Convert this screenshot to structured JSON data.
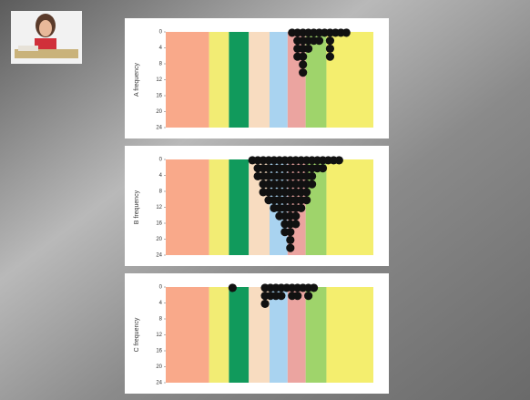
{
  "chart_data": [
    {
      "type": "dotplot",
      "y_label": "A frequency",
      "xlim": [
        0,
        23
      ],
      "ylim": [
        0,
        24
      ],
      "yticks": [
        0,
        4,
        8,
        12,
        16,
        20,
        24
      ],
      "y_inverted": true,
      "dot_color": "#111111",
      "bands": [
        {
          "x": [
            0,
            4.8
          ],
          "color": "#f9a98a"
        },
        {
          "x": [
            4.8,
            7
          ],
          "color": "#f2ec74"
        },
        {
          "x": [
            7,
            9.2
          ],
          "color": "#119a5c"
        },
        {
          "x": [
            9.2,
            11.5
          ],
          "color": "#f8dcc0"
        },
        {
          "x": [
            11.5,
            13.5
          ],
          "color": "#a9d3f0"
        },
        {
          "x": [
            13.5,
            15.5
          ],
          "color": "#eba4a0"
        },
        {
          "x": [
            15.5,
            17.8
          ],
          "color": "#9fd46b"
        },
        {
          "x": [
            17.8,
            23
          ],
          "color": "#f4ee6e"
        }
      ],
      "x": [
        14.0,
        14.6,
        15.2,
        15.8,
        16.4,
        17.0,
        17.6,
        18.2,
        18.8,
        19.4,
        20.0
      ],
      "values": [
        1,
        4,
        6,
        3,
        2,
        2,
        1,
        4,
        1,
        1,
        1
      ]
    },
    {
      "type": "dotplot",
      "y_label": "B frequency",
      "xlim": [
        0,
        23
      ],
      "ylim": [
        0,
        24
      ],
      "yticks": [
        0,
        4,
        8,
        12,
        16,
        20,
        24
      ],
      "y_inverted": true,
      "dot_color": "#111111",
      "bands": [
        {
          "x": [
            0,
            4.8
          ],
          "color": "#f9a98a"
        },
        {
          "x": [
            4.8,
            7
          ],
          "color": "#f2ec74"
        },
        {
          "x": [
            7,
            9.2
          ],
          "color": "#119a5c"
        },
        {
          "x": [
            9.2,
            11.5
          ],
          "color": "#f8dcc0"
        },
        {
          "x": [
            11.5,
            13.5
          ],
          "color": "#a9d3f0"
        },
        {
          "x": [
            13.5,
            15.5
          ],
          "color": "#eba4a0"
        },
        {
          "x": [
            15.5,
            17.8
          ],
          "color": "#9fd46b"
        },
        {
          "x": [
            17.8,
            23
          ],
          "color": "#f4ee6e"
        }
      ],
      "x": [
        9.6,
        10.2,
        10.8,
        11.4,
        12.0,
        12.6,
        13.2,
        13.8,
        14.4,
        15.0,
        15.6,
        16.2,
        16.8,
        17.4,
        18.0,
        18.6,
        19.2
      ],
      "values": [
        1,
        3,
        5,
        6,
        7,
        8,
        10,
        12,
        9,
        7,
        6,
        4,
        2,
        2,
        1,
        1,
        1
      ]
    },
    {
      "type": "dotplot",
      "y_label": "C frequency",
      "xlim": [
        0,
        23
      ],
      "ylim": [
        0,
        24
      ],
      "yticks": [
        0,
        4,
        8,
        12,
        16,
        20,
        24
      ],
      "y_inverted": true,
      "dot_color": "#111111",
      "bands": [
        {
          "x": [
            0,
            4.8
          ],
          "color": "#f9a98a"
        },
        {
          "x": [
            4.8,
            7
          ],
          "color": "#f2ec74"
        },
        {
          "x": [
            7,
            9.2
          ],
          "color": "#119a5c"
        },
        {
          "x": [
            9.2,
            11.5
          ],
          "color": "#f8dcc0"
        },
        {
          "x": [
            11.5,
            13.5
          ],
          "color": "#a9d3f0"
        },
        {
          "x": [
            13.5,
            15.5
          ],
          "color": "#eba4a0"
        },
        {
          "x": [
            15.5,
            17.8
          ],
          "color": "#9fd46b"
        },
        {
          "x": [
            17.8,
            23
          ],
          "color": "#f4ee6e"
        }
      ],
      "x": [
        7.4,
        11.0,
        11.6,
        12.2,
        12.8,
        13.4,
        14.0,
        14.6,
        15.2,
        15.8,
        16.4
      ],
      "values": [
        1,
        3,
        2,
        2,
        2,
        1,
        2,
        2,
        1,
        2,
        1
      ]
    }
  ]
}
